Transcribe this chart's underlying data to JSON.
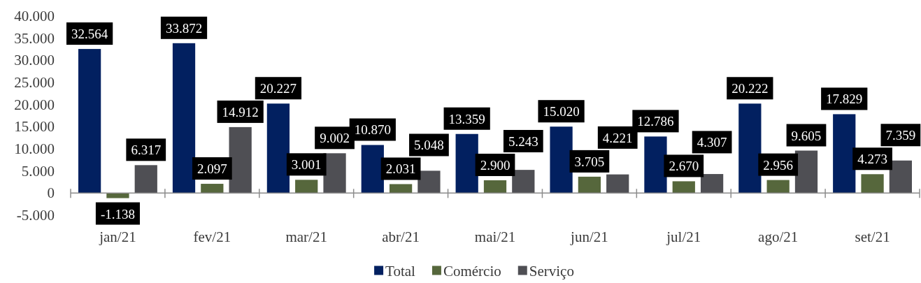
{
  "chart_data": {
    "type": "bar",
    "categories": [
      "jan/21",
      "fev/21",
      "mar/21",
      "abr/21",
      "mai/21",
      "jun/21",
      "jul/21",
      "ago/21",
      "set/21"
    ],
    "ylim": [
      -5000,
      40000
    ],
    "yticks": [
      {
        "value": -5000,
        "label": "-5.000"
      },
      0,
      {
        "value": 5000,
        "label": "5.000"
      },
      {
        "value": 10000,
        "label": "10.000"
      },
      {
        "value": 15000,
        "label": "15.000"
      },
      {
        "value": 20000,
        "label": "20.000"
      },
      {
        "value": 25000,
        "label": "25.000"
      },
      {
        "value": 30000,
        "label": "30.000"
      },
      {
        "value": 35000,
        "label": "35.000"
      },
      {
        "value": 40000,
        "label": "40.000"
      }
    ],
    "legend": "bottom",
    "series": [
      {
        "name": "Total",
        "color": "#022060",
        "values": [
          32564,
          33872,
          20227,
          10870,
          13359,
          15020,
          12786,
          20222,
          17829
        ],
        "value_labels": [
          "32.564",
          "33.872",
          "20.227",
          "10.870",
          "13.359",
          "15.020",
          "12.786",
          "20.222",
          "17.829"
        ]
      },
      {
        "name": "Comércio",
        "color": "#56673c",
        "values": [
          -1138,
          2097,
          3001,
          2031,
          2900,
          3705,
          2670,
          2956,
          4273
        ],
        "value_labels": [
          "-1.138",
          "2.097",
          "3.001",
          "2.031",
          "2.900",
          "3.705",
          "2.670",
          "2.956",
          "4.273"
        ]
      },
      {
        "name": "Serviço",
        "color": "#4f4f54",
        "values": [
          6317,
          14912,
          9002,
          5048,
          5243,
          4221,
          4307,
          9605,
          7359
        ],
        "value_labels": [
          "6.317",
          "14.912",
          "9.002",
          "5.048",
          "5.243",
          "4.221",
          "4.307",
          "9.605",
          "7.359"
        ]
      }
    ]
  }
}
